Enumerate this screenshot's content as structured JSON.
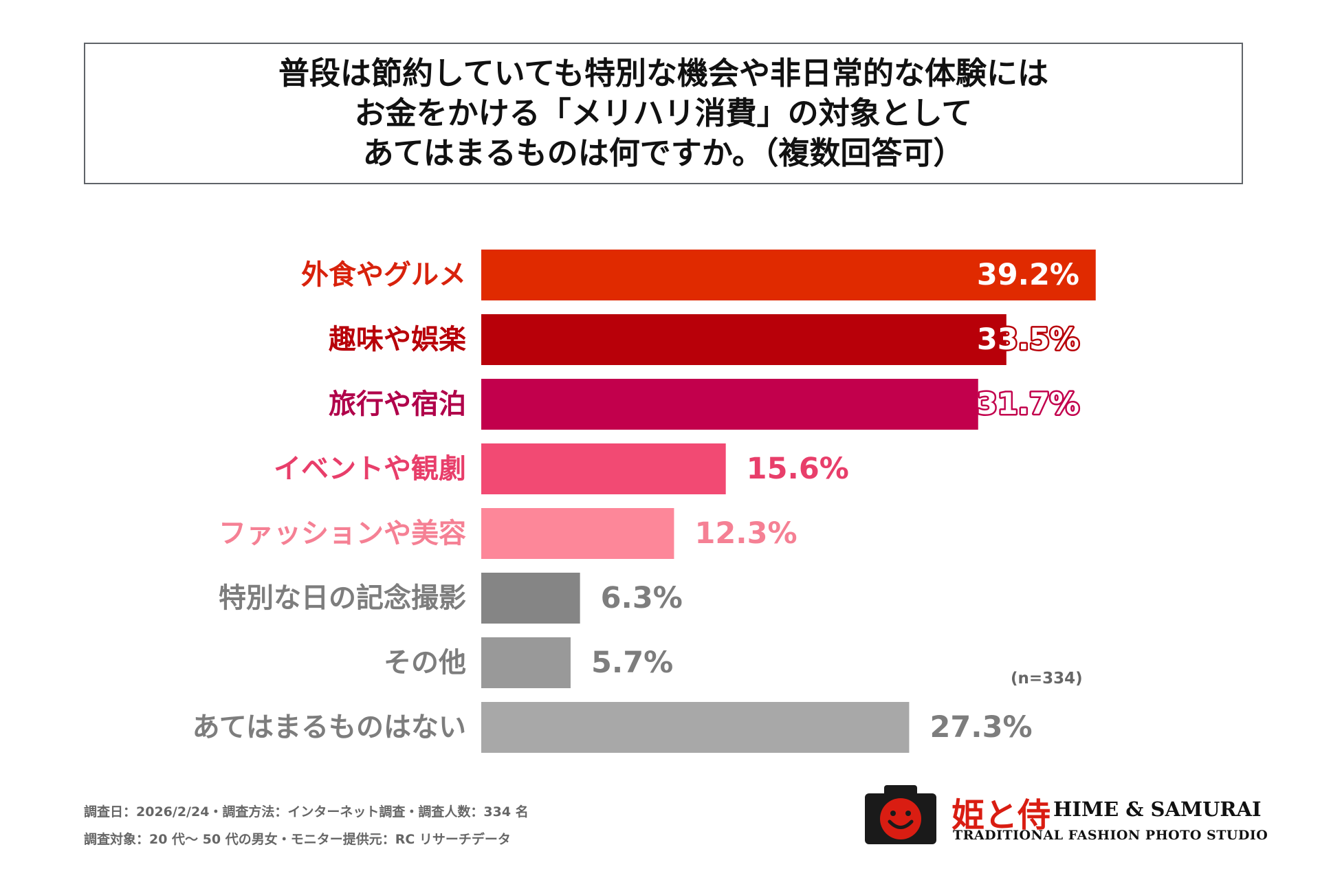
{
  "title_lines": [
    "普段は節約していても特別な機会や非日常的な体験には",
    "お金をかける「メリハリ消費」の対象として",
    "あてはまるものは何ですか。（複数回答可）"
  ],
  "chart_data": {
    "type": "bar",
    "orientation": "horizontal",
    "categories": [
      "外食やグルメ",
      "趣味や娯楽",
      "旅行や宿泊",
      "イベントや観劇",
      "ファッションや美容",
      "特別な日の記念撮影",
      "その他",
      "あてはまるものはない"
    ],
    "values": [
      39.2,
      33.5,
      31.7,
      15.6,
      12.3,
      6.3,
      5.7,
      27.3
    ],
    "value_labels": [
      "39.2%",
      "33.5%",
      "31.7%",
      "15.6%",
      "12.3%",
      "6.3%",
      "5.7%",
      "27.3%"
    ],
    "colors": [
      "#e02a00",
      "#b80009",
      "#c2004c",
      "#f24a73",
      "#fd8799",
      "#858585",
      "#999999",
      "#a8a8a8"
    ],
    "label_colors": [
      "#d8220c",
      "#b80009",
      "#b0004a",
      "#e83e6a",
      "#f58094",
      "#7d7d7d",
      "#7d7d7d",
      "#7d7d7d"
    ],
    "label_inside": [
      true,
      true,
      true,
      false,
      false,
      false,
      false,
      false
    ],
    "xlim": [
      0,
      40
    ],
    "unit": "%",
    "title": "",
    "xlabel": "",
    "ylabel": ""
  },
  "sample_note": "(n=334)",
  "footer": {
    "line1": "調査日：2026/2/24・調査方法：インターネット調査・調査人数：334 名",
    "line2": "調査対象：20 代〜 50 代の男女・モニター提供元：RC リサーチデータ"
  },
  "brand": {
    "kanji": "姫と侍",
    "name": "HIME & SAMURAI",
    "sub": "TRADITIONAL FASHION PHOTO STUDIO",
    "icon": "camera-smile-icon",
    "accent": "#d91d12"
  }
}
